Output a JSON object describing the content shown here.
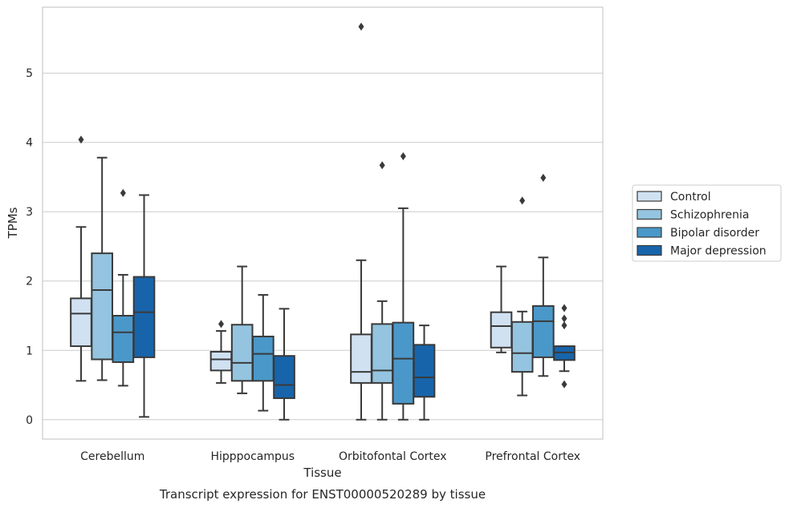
{
  "caption": "Transcript expression for ENST00000520289 by tissue",
  "chart_data": {
    "type": "box",
    "xlabel": "Tissue",
    "ylabel": "TPMs",
    "ylim": [
      -0.28,
      5.95
    ],
    "yticks": [
      0,
      1,
      2,
      3,
      4,
      5
    ],
    "grid": "horizontal",
    "legend_position": "right",
    "categories": [
      "Cerebellum",
      "Hipppocampus",
      "Orbitofontal Cortex",
      "Prefrontal Cortex"
    ],
    "series": [
      {
        "name": "Control",
        "color": "#d0e1f2",
        "boxes": [
          {
            "whislo": 0.56,
            "q1": 1.06,
            "med": 1.53,
            "q3": 1.75,
            "whishi": 2.78,
            "fliers": [
              4.04
            ]
          },
          {
            "whislo": 0.53,
            "q1": 0.71,
            "med": 0.87,
            "q3": 0.98,
            "whishi": 1.28,
            "fliers": [
              1.38
            ]
          },
          {
            "whislo": 0.0,
            "q1": 0.53,
            "med": 0.69,
            "q3": 1.23,
            "whishi": 2.3,
            "fliers": [
              5.67
            ]
          },
          {
            "whislo": 0.97,
            "q1": 1.04,
            "med": 1.35,
            "q3": 1.55,
            "whishi": 2.21,
            "fliers": []
          }
        ]
      },
      {
        "name": "Schizophrenia",
        "color": "#94c4df",
        "boxes": [
          {
            "whislo": 0.57,
            "q1": 0.87,
            "med": 1.87,
            "q3": 2.4,
            "whishi": 3.78,
            "fliers": []
          },
          {
            "whislo": 0.38,
            "q1": 0.56,
            "med": 0.82,
            "q3": 1.37,
            "whishi": 2.21,
            "fliers": []
          },
          {
            "whislo": 0.0,
            "q1": 0.53,
            "med": 0.71,
            "q3": 1.38,
            "whishi": 1.71,
            "fliers": [
              3.67
            ]
          },
          {
            "whislo": 0.35,
            "q1": 0.69,
            "med": 0.96,
            "q3": 1.41,
            "whishi": 1.56,
            "fliers": [
              3.16
            ]
          }
        ]
      },
      {
        "name": "Bipolar disorder",
        "color": "#4a98c9",
        "boxes": [
          {
            "whislo": 0.49,
            "q1": 0.83,
            "med": 1.26,
            "q3": 1.5,
            "whishi": 2.09,
            "fliers": [
              3.27
            ]
          },
          {
            "whislo": 0.13,
            "q1": 0.56,
            "med": 0.95,
            "q3": 1.2,
            "whishi": 1.8,
            "fliers": []
          },
          {
            "whislo": 0.0,
            "q1": 0.23,
            "med": 0.88,
            "q3": 1.4,
            "whishi": 3.05,
            "fliers": [
              3.8
            ]
          },
          {
            "whislo": 0.63,
            "q1": 0.9,
            "med": 1.42,
            "q3": 1.64,
            "whishi": 2.34,
            "fliers": [
              3.49
            ]
          }
        ]
      },
      {
        "name": "Major depression",
        "color": "#1764ab",
        "boxes": [
          {
            "whislo": 0.04,
            "q1": 0.9,
            "med": 1.55,
            "q3": 2.06,
            "whishi": 3.24,
            "fliers": []
          },
          {
            "whislo": 0.0,
            "q1": 0.31,
            "med": 0.5,
            "q3": 0.92,
            "whishi": 1.6,
            "fliers": []
          },
          {
            "whislo": 0.0,
            "q1": 0.33,
            "med": 0.61,
            "q3": 1.08,
            "whishi": 1.36,
            "fliers": []
          },
          {
            "whislo": 0.7,
            "q1": 0.86,
            "med": 0.97,
            "q3": 1.06,
            "whishi": 1.06,
            "fliers": [
              1.61,
              1.46,
              1.36,
              0.51
            ]
          }
        ]
      }
    ]
  }
}
